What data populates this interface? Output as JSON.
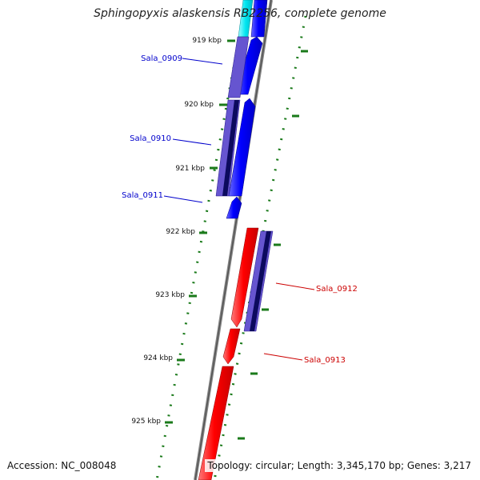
{
  "title": "Sphingopyxis alaskensis RB2256, complete genome",
  "scale": {
    "ticks": [
      "919 kbp",
      "920 kbp",
      "921 kbp",
      "922 kbp",
      "923 kbp",
      "924 kbp",
      "925 kbp"
    ]
  },
  "genes": [
    {
      "label": "Sala_0909",
      "strand": "forward",
      "color": "#0000ff"
    },
    {
      "label": "Sala_0910",
      "strand": "forward",
      "color": "#0000ff"
    },
    {
      "label": "Sala_0911",
      "strand": "forward",
      "color": "#0000ff"
    },
    {
      "label": "Sala_0912",
      "strand": "reverse",
      "color": "#ff0000"
    },
    {
      "label": "Sala_0913",
      "strand": "reverse",
      "color": "#ff0000"
    }
  ],
  "colors": {
    "forward_gene": "#0000ff",
    "reverse_gene": "#ff0000",
    "other_feature": "#00e6f0",
    "cog_bar": "#6655d0",
    "gc_track": "#1a7a1a",
    "backbone": "#888888"
  },
  "footer": {
    "accession": "Accession: NC_008048",
    "summary": "Topology: circular; Length: 3,345,170 bp; Genes: 3,217"
  }
}
